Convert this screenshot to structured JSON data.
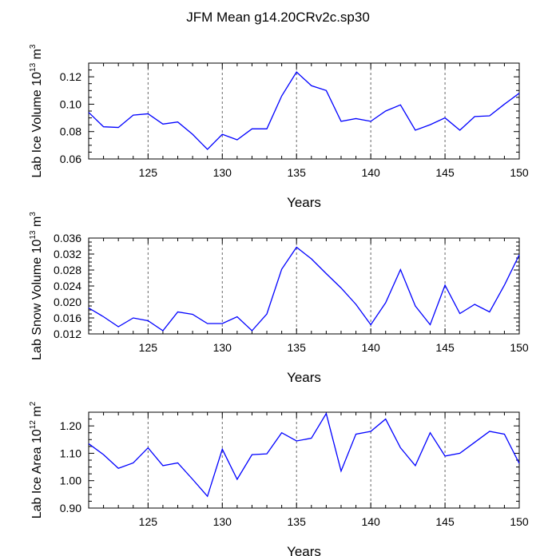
{
  "title": "JFM Mean g14.20CRv2c.sp30",
  "chart_data": [
    {
      "type": "line",
      "ylabel": {
        "prefix": "Lab Ice Volume 10",
        "exp": "13",
        "unit": " m",
        "unit_exp": "3"
      },
      "xlabel": "Years",
      "xlim": [
        121,
        150
      ],
      "ylim": [
        0.06,
        0.13
      ],
      "x_ticks": [
        125,
        130,
        135,
        140,
        145,
        150
      ],
      "y_ticks": [
        0.06,
        0.08,
        0.1,
        0.12
      ],
      "y_tick_labels": [
        "0.06",
        "0.08",
        "0.10",
        "0.12"
      ],
      "grid_x": [
        125,
        130,
        135,
        140,
        145
      ],
      "color": "#0000ff",
      "series": [
        {
          "name": "Lab Ice Volume",
          "x": [
            121,
            122,
            123,
            124,
            125,
            126,
            127,
            128,
            129,
            130,
            131,
            132,
            133,
            134,
            135,
            136,
            137,
            138,
            139,
            140,
            141,
            142,
            143,
            144,
            145,
            146,
            147,
            148,
            149,
            150
          ],
          "values": [
            0.094,
            0.0835,
            0.083,
            0.092,
            0.093,
            0.0855,
            0.087,
            0.078,
            0.067,
            0.078,
            0.074,
            0.082,
            0.082,
            0.106,
            0.1235,
            0.1135,
            0.11,
            0.0875,
            0.0895,
            0.0875,
            0.095,
            0.0995,
            0.081,
            0.085,
            0.09,
            0.081,
            0.091,
            0.0915,
            0.1,
            0.108
          ]
        }
      ]
    },
    {
      "type": "line",
      "ylabel": {
        "prefix": "Lab Snow Volume 10",
        "exp": "13",
        "unit": " m",
        "unit_exp": "3"
      },
      "xlabel": "Years",
      "xlim": [
        121,
        150
      ],
      "ylim": [
        0.012,
        0.036
      ],
      "x_ticks": [
        125,
        130,
        135,
        140,
        145,
        150
      ],
      "y_ticks": [
        0.012,
        0.016,
        0.02,
        0.024,
        0.028,
        0.032,
        0.036
      ],
      "y_tick_labels": [
        "0.012",
        "0.016",
        "0.020",
        "0.024",
        "0.028",
        "0.032",
        "0.036"
      ],
      "grid_x": [
        125,
        130,
        135,
        140,
        145
      ],
      "color": "#0000ff",
      "series": [
        {
          "name": "Lab Snow Volume",
          "x": [
            121,
            122,
            123,
            124,
            125,
            126,
            127,
            128,
            129,
            130,
            131,
            132,
            133,
            134,
            135,
            136,
            137,
            138,
            139,
            140,
            141,
            142,
            143,
            144,
            145,
            146,
            147,
            148,
            149,
            150
          ],
          "values": [
            0.0185,
            0.0163,
            0.0138,
            0.016,
            0.0153,
            0.0128,
            0.0175,
            0.0169,
            0.0146,
            0.0146,
            0.0163,
            0.0128,
            0.017,
            0.0282,
            0.0337,
            0.0308,
            0.0271,
            0.0235,
            0.0194,
            0.0143,
            0.0198,
            0.0281,
            0.019,
            0.0143,
            0.0242,
            0.0171,
            0.0194,
            0.0175,
            0.0242,
            0.0318
          ]
        }
      ]
    },
    {
      "type": "line",
      "ylabel": {
        "prefix": "Lab Ice Area 10",
        "exp": "12",
        "unit": " m",
        "unit_exp": "2"
      },
      "xlabel": "Years",
      "xlim": [
        121,
        150
      ],
      "ylim": [
        0.9,
        1.25
      ],
      "x_ticks": [
        125,
        130,
        135,
        140,
        145,
        150
      ],
      "y_ticks": [
        0.9,
        1.0,
        1.1,
        1.2
      ],
      "y_tick_labels": [
        "0.90",
        "1.00",
        "1.10",
        "1.20"
      ],
      "grid_x": [
        125,
        130,
        135,
        140,
        145
      ],
      "color": "#0000ff",
      "series": [
        {
          "name": "Lab Ice Area",
          "x": [
            121,
            122,
            123,
            124,
            125,
            126,
            127,
            128,
            129,
            130,
            131,
            132,
            133,
            134,
            135,
            136,
            137,
            138,
            139,
            140,
            141,
            142,
            143,
            144,
            145,
            146,
            147,
            148,
            149,
            150
          ],
          "values": [
            1.135,
            1.095,
            1.045,
            1.065,
            1.12,
            1.055,
            1.065,
            1.005,
            0.943,
            1.115,
            1.005,
            1.095,
            1.098,
            1.175,
            1.145,
            1.155,
            1.245,
            1.035,
            1.17,
            1.18,
            1.225,
            1.12,
            1.055,
            1.175,
            1.09,
            1.1,
            1.14,
            1.18,
            1.17,
            1.063
          ]
        }
      ]
    }
  ]
}
